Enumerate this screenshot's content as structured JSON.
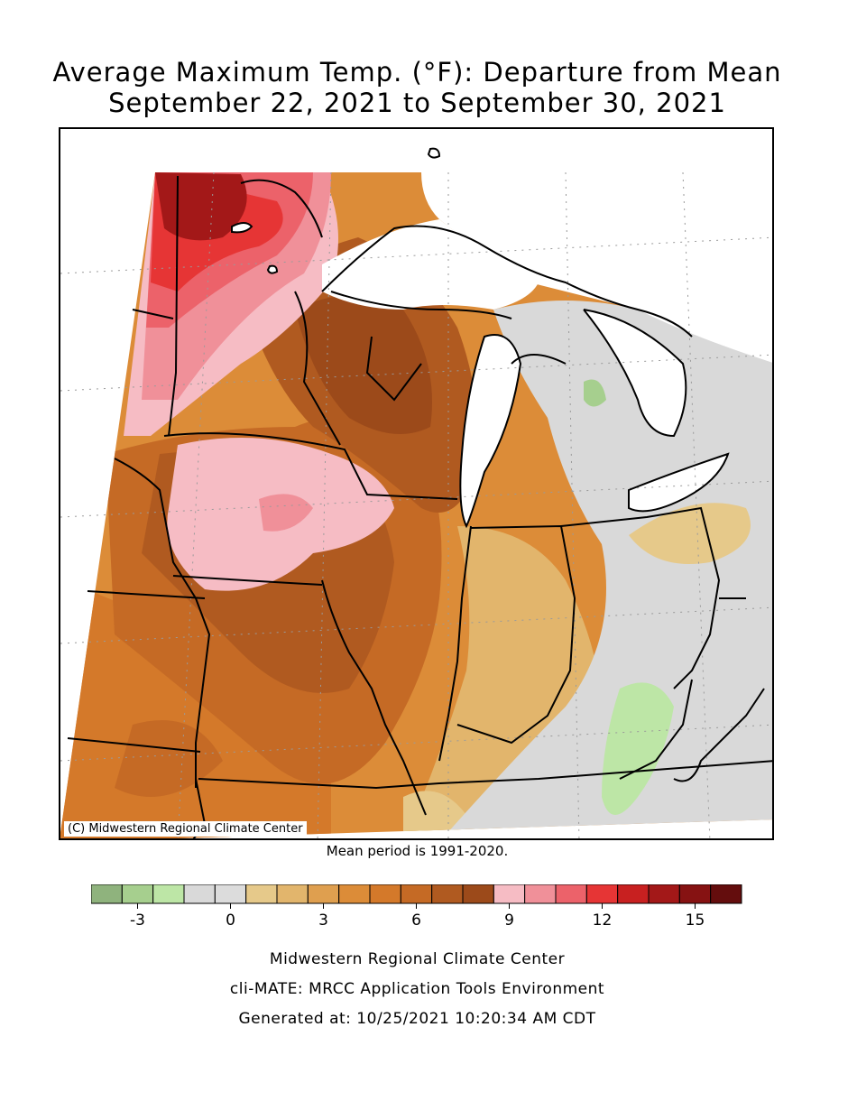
{
  "title": {
    "line1": "Average Maximum Temp. (°F): Departure from Mean",
    "line2": "September 22, 2021 to September 30, 2021"
  },
  "map": {
    "copyright": "(C) Midwestern Regional Climate Center",
    "mean_period": "Mean period is 1991-2020."
  },
  "legend": {
    "colors": [
      "#8fb37d",
      "#a6cf8e",
      "#bde6a6",
      "#d9d9d9",
      "#dcdcdc",
      "#e6c98a",
      "#e2b56c",
      "#df9f4f",
      "#dc8c38",
      "#d4792a",
      "#c56a25",
      "#b05a20",
      "#9c4a1a",
      "#f6bcc4",
      "#f09099",
      "#ec626a",
      "#e63535",
      "#c82020",
      "#a31818",
      "#861212",
      "#640d0d"
    ],
    "ticks": [
      {
        "label": "-3",
        "value": -3
      },
      {
        "label": "0",
        "value": 0
      },
      {
        "label": "3",
        "value": 3
      },
      {
        "label": "6",
        "value": 6
      },
      {
        "label": "9",
        "value": 9
      },
      {
        "label": "12",
        "value": 12
      },
      {
        "label": "15",
        "value": 15
      }
    ],
    "min": -4.5,
    "max": 16.5
  },
  "footer": {
    "line1": "Midwestern Regional Climate Center",
    "line2": "cli-MATE: MRCC Application Tools Environment",
    "line3": "Generated at: 10/25/2021 10:20:34 AM CDT"
  }
}
